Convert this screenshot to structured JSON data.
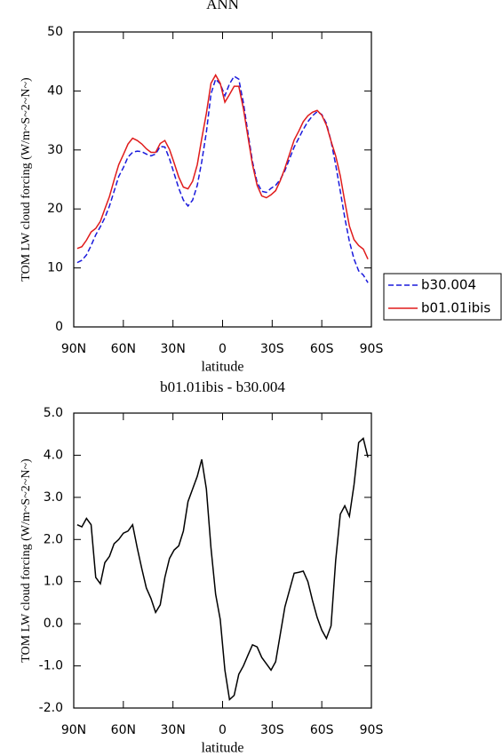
{
  "chart_data": [
    {
      "type": "line",
      "title": "ANN",
      "xlabel": "latitude",
      "ylabel": "TOM LW cloud forcing (W/m~S~2~N~)",
      "x": [
        87.9,
        85.1,
        82.3,
        79.5,
        76.7,
        73.9,
        71.2,
        68.4,
        65.6,
        62.8,
        60.0,
        57.2,
        54.4,
        51.6,
        48.8,
        46.1,
        43.3,
        40.5,
        37.7,
        34.9,
        32.1,
        29.3,
        26.5,
        23.7,
        20.9,
        18.1,
        15.3,
        12.6,
        9.8,
        7.0,
        4.2,
        1.4,
        -1.4,
        -4.2,
        -7.0,
        -9.8,
        -12.6,
        -15.3,
        -18.1,
        -20.9,
        -23.7,
        -26.5,
        -29.3,
        -32.1,
        -34.9,
        -37.7,
        -40.5,
        -43.3,
        -46.1,
        -48.8,
        -51.6,
        -54.4,
        -57.2,
        -60.0,
        -62.8,
        -65.6,
        -68.4,
        -71.2,
        -73.9,
        -76.7,
        -79.5,
        -82.3,
        -85.1,
        -87.9
      ],
      "series": [
        {
          "name": "b30.004",
          "color": "#1a1adc",
          "dash": true,
          "values": [
            10.9,
            11.3,
            12.2,
            13.8,
            15.6,
            17.0,
            18.5,
            20.5,
            23.0,
            25.5,
            27.0,
            28.8,
            29.6,
            29.8,
            29.7,
            29.3,
            29.0,
            29.3,
            30.6,
            30.5,
            28.5,
            26.0,
            23.5,
            21.5,
            20.5,
            21.5,
            24.0,
            28.0,
            33.0,
            39.5,
            42.0,
            41.2,
            39.2,
            41.2,
            42.5,
            42.0,
            38.0,
            33.0,
            28.0,
            24.5,
            23.0,
            22.8,
            23.5,
            24.0,
            25.0,
            26.5,
            28.5,
            30.5,
            32.0,
            33.5,
            34.8,
            35.8,
            36.5,
            36.0,
            34.5,
            31.5,
            27.5,
            23.0,
            18.5,
            14.5,
            11.5,
            9.5,
            8.8,
            7.5
          ]
        },
        {
          "name": "b01.01ibis",
          "color": "#e01b1b",
          "dash": false,
          "values": [
            13.3,
            13.6,
            14.7,
            16.1,
            16.7,
            17.9,
            20.0,
            22.1,
            24.9,
            27.5,
            29.2,
            31.0,
            32.0,
            31.6,
            31.0,
            30.2,
            29.6,
            29.6,
            31.1,
            31.6,
            30.1,
            27.8,
            25.4,
            23.7,
            23.4,
            24.7,
            27.5,
            31.9,
            36.2,
            41.3,
            42.7,
            41.3,
            38.1,
            39.4,
            40.8,
            40.8,
            37.0,
            32.3,
            27.5,
            24.0,
            22.2,
            21.9,
            22.4,
            23.1,
            24.8,
            26.9,
            29.3,
            31.7,
            33.2,
            34.8,
            35.8,
            36.4,
            36.7,
            35.9,
            34.2,
            31.5,
            29.0,
            25.6,
            21.3,
            17.1,
            14.8,
            13.8,
            13.2,
            11.5
          ]
        }
      ],
      "xlim": [
        90,
        -90
      ],
      "xticks": [
        {
          "value": 90,
          "label": "90N"
        },
        {
          "value": 60,
          "label": "60N"
        },
        {
          "value": 30,
          "label": "30N"
        },
        0,
        {
          "value": -30,
          "label": "30S"
        },
        {
          "value": -60,
          "label": "60S"
        },
        {
          "value": -90,
          "label": "90S"
        }
      ],
      "ylim": [
        0,
        50
      ],
      "yticks": [
        0,
        10,
        20,
        30,
        40,
        50
      ],
      "legend": "right"
    },
    {
      "type": "line",
      "title": "b01.01ibis - b30.004",
      "xlabel": "latitude",
      "ylabel": "TOM LW cloud forcing (W/m~S~2~N~)",
      "x": [
        87.9,
        85.1,
        82.3,
        79.5,
        76.7,
        73.9,
        71.2,
        68.4,
        65.6,
        62.8,
        60.0,
        57.2,
        54.4,
        51.6,
        48.8,
        46.1,
        43.3,
        40.5,
        37.7,
        34.9,
        32.1,
        29.3,
        26.5,
        23.7,
        20.9,
        18.1,
        15.3,
        12.6,
        9.8,
        7.0,
        4.2,
        1.4,
        -1.4,
        -4.2,
        -7.0,
        -9.8,
        -12.6,
        -15.3,
        -18.1,
        -20.9,
        -23.7,
        -26.5,
        -29.3,
        -32.1,
        -34.9,
        -37.7,
        -40.5,
        -43.3,
        -46.1,
        -48.8,
        -51.6,
        -54.4,
        -57.2,
        -60.0,
        -62.8,
        -65.6,
        -68.4,
        -71.2,
        -73.9,
        -76.7,
        -79.5,
        -82.3,
        -85.1,
        -87.9
      ],
      "series": [
        {
          "color": "#000000",
          "dash": false,
          "values": [
            2.35,
            2.3,
            2.5,
            2.35,
            1.1,
            0.95,
            1.45,
            1.6,
            1.9,
            2.0,
            2.15,
            2.2,
            2.35,
            1.8,
            1.3,
            0.85,
            0.6,
            0.27,
            0.45,
            1.1,
            1.55,
            1.75,
            1.85,
            2.2,
            2.9,
            3.2,
            3.5,
            3.9,
            3.2,
            1.8,
            0.7,
            0.1,
            -1.1,
            -1.8,
            -1.7,
            -1.2,
            -1.0,
            -0.75,
            -0.5,
            -0.55,
            -0.8,
            -0.95,
            -1.1,
            -0.9,
            -0.25,
            0.4,
            0.8,
            1.2,
            1.22,
            1.25,
            1.0,
            0.55,
            0.15,
            -0.15,
            -0.35,
            -0.05,
            1.5,
            2.6,
            2.8,
            2.55,
            3.3,
            4.3,
            4.4,
            3.95
          ]
        }
      ],
      "xlim": [
        90,
        -90
      ],
      "xticks": [
        {
          "value": 90,
          "label": "90N"
        },
        {
          "value": 60,
          "label": "60N"
        },
        {
          "value": 30,
          "label": "30N"
        },
        0,
        {
          "value": -30,
          "label": "30S"
        },
        {
          "value": -60,
          "label": "60S"
        },
        {
          "value": -90,
          "label": "90S"
        }
      ],
      "ylim": [
        -2,
        5
      ],
      "yticks": [
        {
          "value": -2,
          "label": "-2.0"
        },
        {
          "value": -1,
          "label": "-1.0"
        },
        {
          "value": 0,
          "label": "0.0"
        },
        {
          "value": 1,
          "label": "1.0"
        },
        {
          "value": 2,
          "label": "2.0"
        },
        {
          "value": 3,
          "label": "3.0"
        },
        {
          "value": 4,
          "label": "4.0"
        },
        {
          "value": 5,
          "label": "5.0"
        }
      ]
    }
  ]
}
